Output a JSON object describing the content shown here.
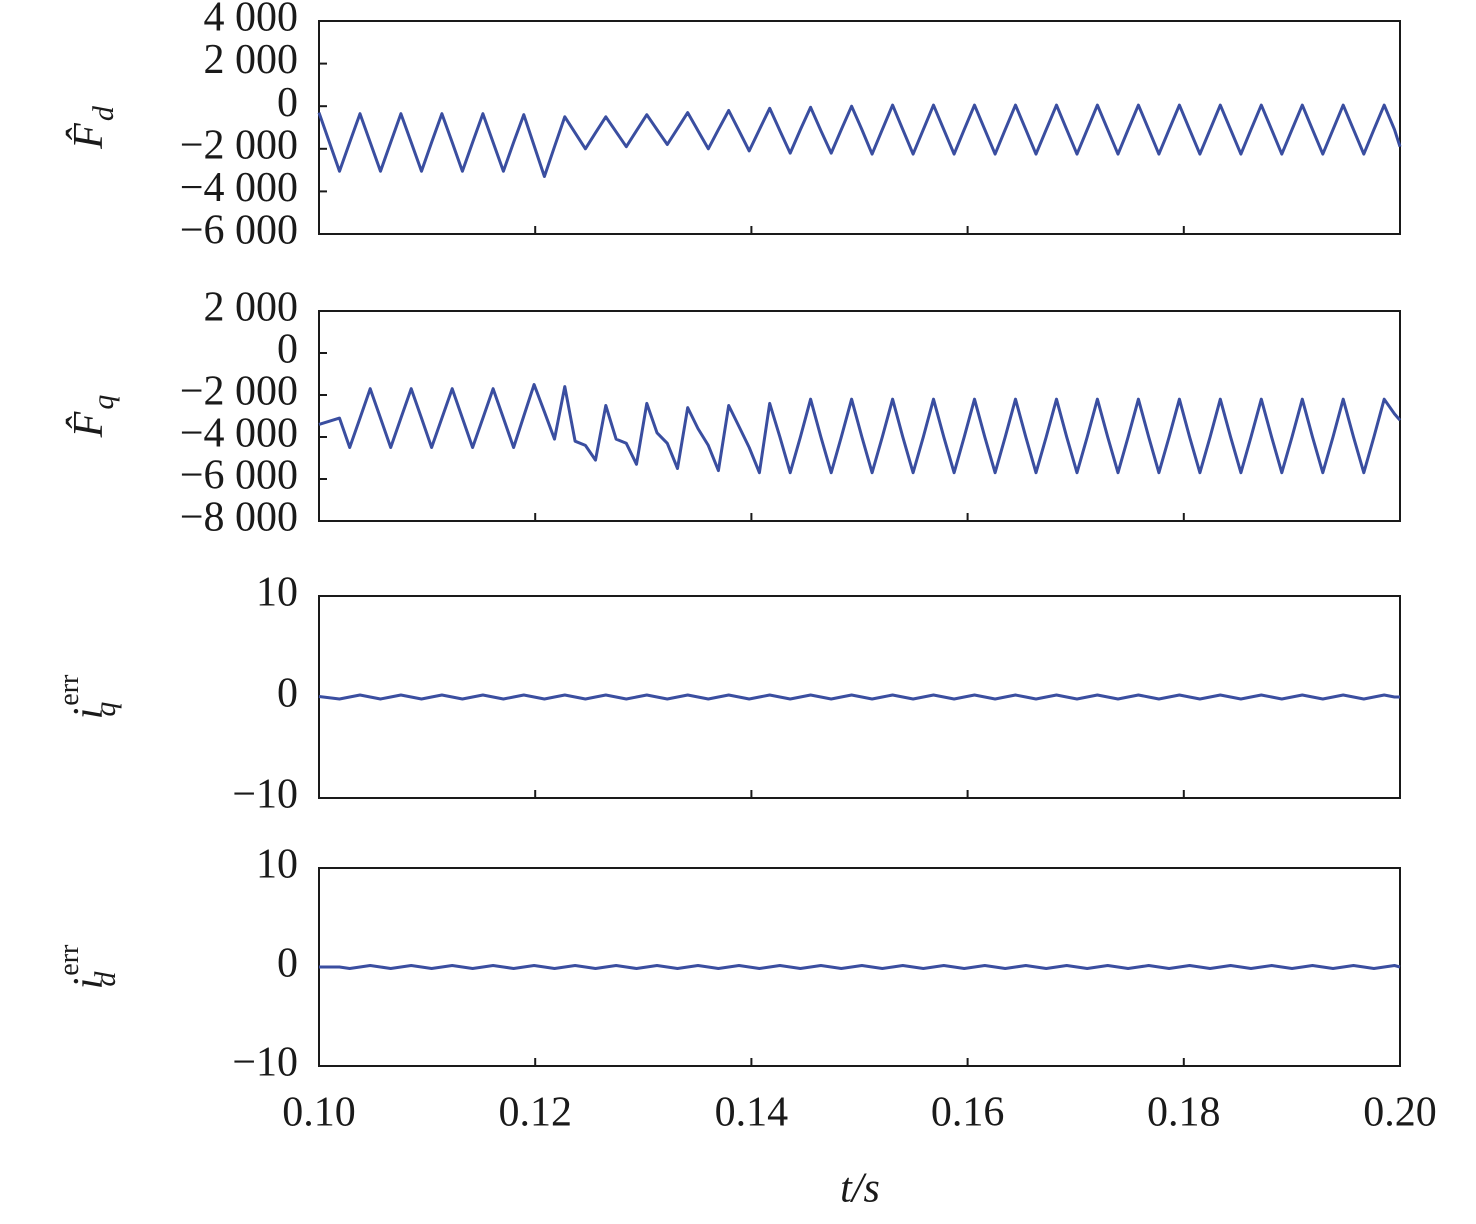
{
  "chart_data": [
    {
      "type": "line",
      "ylabel": "F̂",
      "ylabel_sub": "d",
      "color": "#3a4ea0",
      "xlim": [
        0.1,
        0.2
      ],
      "ylim": [
        -6000,
        4000
      ],
      "yticks": [
        {
          "value": 4000,
          "label": "4 000"
        },
        {
          "value": 2000,
          "label": "2 000"
        },
        0,
        {
          "value": -2000,
          "label": "−2 000"
        },
        {
          "value": -4000,
          "label": "−4 000"
        },
        {
          "value": -6000,
          "label": "−6 000"
        }
      ],
      "x": [
        0.1,
        0.1019,
        0.10284,
        0.10379,
        0.10474,
        0.10569,
        0.10663,
        0.10758,
        0.10853,
        0.10948,
        0.11042,
        0.11137,
        0.11232,
        0.11327,
        0.11421,
        0.11516,
        0.11611,
        0.11706,
        0.118,
        0.11895,
        0.1199,
        0.12085,
        0.12179,
        0.12274,
        0.12369,
        0.12464,
        0.12558,
        0.12653,
        0.12748,
        0.12843,
        0.12937,
        0.13032,
        0.13127,
        0.13222,
        0.13316,
        0.13411,
        0.13506,
        0.13601,
        0.13695,
        0.1379,
        0.13885,
        0.1398,
        0.14074,
        0.14169,
        0.14264,
        0.14359,
        0.14453,
        0.14548,
        0.14643,
        0.14738,
        0.14832,
        0.14927,
        0.15022,
        0.15117,
        0.15211,
        0.15306,
        0.15401,
        0.15496,
        0.1559,
        0.15685,
        0.1578,
        0.15875,
        0.15969,
        0.16064,
        0.16159,
        0.16254,
        0.16348,
        0.16443,
        0.16538,
        0.16633,
        0.16727,
        0.16822,
        0.16917,
        0.17012,
        0.17106,
        0.17201,
        0.17296,
        0.17391,
        0.17485,
        0.1758,
        0.17675,
        0.1777,
        0.17864,
        0.17959,
        0.18054,
        0.18149,
        0.18243,
        0.18338,
        0.18433,
        0.18528,
        0.18622,
        0.18717,
        0.18812,
        0.18907,
        0.19001,
        0.19096,
        0.19191,
        0.19286,
        0.1938,
        0.19475,
        0.1957,
        0.19665,
        0.19759,
        0.19854,
        0.19949,
        0.2
      ],
      "values": [
        -300,
        -3050,
        -1700,
        -350,
        -1700,
        -3050,
        -1700,
        -350,
        -1700,
        -3050,
        -1700,
        -350,
        -1700,
        -3050,
        -1700,
        -350,
        -1700,
        -3050,
        -1700,
        -400,
        -1850,
        -3300,
        -1900,
        -500,
        -1250,
        -2000,
        -1250,
        -500,
        -1200,
        -1900,
        -1150,
        -400,
        -1100,
        -1800,
        -1050,
        -300,
        -1150,
        -2000,
        -1100,
        -200,
        -1150,
        -2100,
        -1100,
        -100,
        -1150,
        -2200,
        -1100,
        -50,
        -1150,
        -2200,
        -1100,
        0,
        -1100,
        -2250,
        -1100,
        50,
        -1100,
        -2250,
        -1100,
        50,
        -1100,
        -2250,
        -1100,
        50,
        -1100,
        -2250,
        -1100,
        50,
        -1100,
        -2250,
        -1100,
        50,
        -1100,
        -2250,
        -1100,
        50,
        -1100,
        -2250,
        -1100,
        50,
        -1100,
        -2250,
        -1100,
        50,
        -1100,
        -2250,
        -1100,
        50,
        -1100,
        -2250,
        -1100,
        50,
        -1100,
        -2250,
        -1100,
        50,
        -1100,
        -2250,
        -1100,
        50,
        -1100,
        -2250,
        -1100,
        50,
        -1100,
        -1900
      ]
    },
    {
      "type": "line",
      "ylabel": "F̂",
      "ylabel_sub": "q",
      "color": "#3a4ea0",
      "xlim": [
        0.1,
        0.2
      ],
      "ylim": [
        -8000,
        2000
      ],
      "yticks": [
        {
          "value": 2000,
          "label": "2 000"
        },
        0,
        {
          "value": -2000,
          "label": "−2 000"
        },
        {
          "value": -4000,
          "label": "−4 000"
        },
        {
          "value": -6000,
          "label": "−6 000"
        },
        {
          "value": -8000,
          "label": "−8 000"
        }
      ],
      "x": [
        0.1,
        0.1019,
        0.10284,
        0.10379,
        0.10474,
        0.10569,
        0.10663,
        0.10758,
        0.10853,
        0.10948,
        0.11042,
        0.11137,
        0.11232,
        0.11327,
        0.11421,
        0.11516,
        0.11611,
        0.11706,
        0.118,
        0.11895,
        0.1199,
        0.12085,
        0.12179,
        0.12274,
        0.12369,
        0.12464,
        0.12558,
        0.12653,
        0.12748,
        0.12843,
        0.12937,
        0.13032,
        0.13127,
        0.13222,
        0.13316,
        0.13411,
        0.13506,
        0.13601,
        0.13695,
        0.1379,
        0.13885,
        0.1398,
        0.14074,
        0.14169,
        0.14264,
        0.14359,
        0.14453,
        0.14548,
        0.14643,
        0.14738,
        0.14832,
        0.14927,
        0.15022,
        0.15117,
        0.15211,
        0.15306,
        0.15401,
        0.15496,
        0.1559,
        0.15685,
        0.1578,
        0.15875,
        0.15969,
        0.16064,
        0.16159,
        0.16254,
        0.16348,
        0.16443,
        0.16538,
        0.16633,
        0.16727,
        0.16822,
        0.16917,
        0.17012,
        0.17106,
        0.17201,
        0.17296,
        0.17391,
        0.17485,
        0.1758,
        0.17675,
        0.1777,
        0.17864,
        0.17959,
        0.18054,
        0.18149,
        0.18243,
        0.18338,
        0.18433,
        0.18528,
        0.18622,
        0.18717,
        0.18812,
        0.18907,
        0.19001,
        0.19096,
        0.19191,
        0.19286,
        0.1938,
        0.19475,
        0.1957,
        0.19665,
        0.19759,
        0.19854,
        0.19949,
        0.2
      ],
      "values": [
        -3400,
        -3100,
        -4500,
        -3100,
        -1700,
        -3100,
        -4500,
        -3100,
        -1700,
        -3100,
        -4500,
        -3100,
        -1700,
        -3100,
        -4500,
        -3100,
        -1700,
        -3100,
        -4500,
        -3000,
        -1500,
        -2800,
        -4100,
        -1600,
        -4200,
        -4400,
        -5100,
        -2500,
        -4100,
        -4300,
        -5300,
        -2400,
        -3800,
        -4300,
        -5500,
        -2600,
        -3600,
        -4400,
        -5600,
        -2500,
        -3500,
        -4500,
        -5700,
        -2400,
        -4000,
        -5700,
        -4000,
        -2200,
        -4000,
        -5700,
        -4000,
        -2200,
        -4000,
        -5700,
        -4000,
        -2200,
        -4000,
        -5700,
        -4000,
        -2200,
        -4000,
        -5700,
        -4000,
        -2200,
        -4000,
        -5700,
        -4000,
        -2200,
        -4000,
        -5700,
        -4000,
        -2200,
        -4000,
        -5700,
        -4000,
        -2200,
        -4000,
        -5700,
        -4000,
        -2200,
        -4000,
        -5700,
        -4000,
        -2200,
        -4000,
        -5700,
        -4000,
        -2200,
        -4000,
        -5700,
        -4000,
        -2200,
        -4000,
        -5700,
        -4000,
        -2200,
        -4000,
        -5700,
        -4000,
        -2200,
        -4000,
        -5700,
        -4000,
        -2200,
        -2900,
        -3200
      ]
    },
    {
      "type": "line",
      "ylabel": "i",
      "ylabel_sub": "q",
      "ylabel_sup": "err",
      "color": "#3a4ea0",
      "xlim": [
        0.1,
        0.2
      ],
      "ylim": [
        -10,
        10
      ],
      "yticks": [
        10,
        0,
        {
          "value": -10,
          "label": "−10"
        }
      ],
      "x": [
        0.1,
        0.1019,
        0.10284,
        0.10379,
        0.10474,
        0.10569,
        0.10663,
        0.10758,
        0.10853,
        0.10948,
        0.11042,
        0.11137,
        0.11232,
        0.11327,
        0.11421,
        0.11516,
        0.11611,
        0.11706,
        0.118,
        0.11895,
        0.1199,
        0.12085,
        0.12179,
        0.12274,
        0.12369,
        0.12464,
        0.12558,
        0.12653,
        0.12748,
        0.12843,
        0.12937,
        0.13032,
        0.13127,
        0.13222,
        0.13316,
        0.13411,
        0.13506,
        0.13601,
        0.13695,
        0.1379,
        0.13885,
        0.1398,
        0.14074,
        0.14169,
        0.14264,
        0.14359,
        0.14453,
        0.14548,
        0.14643,
        0.14738,
        0.14832,
        0.14927,
        0.15022,
        0.15117,
        0.15211,
        0.15306,
        0.15401,
        0.15496,
        0.1559,
        0.15685,
        0.1578,
        0.15875,
        0.15969,
        0.16064,
        0.16159,
        0.16254,
        0.16348,
        0.16443,
        0.16538,
        0.16633,
        0.16727,
        0.16822,
        0.16917,
        0.17012,
        0.17106,
        0.17201,
        0.17296,
        0.17391,
        0.17485,
        0.1758,
        0.17675,
        0.1777,
        0.17864,
        0.17959,
        0.18054,
        0.18149,
        0.18243,
        0.18338,
        0.18433,
        0.18528,
        0.18622,
        0.18717,
        0.18812,
        0.18907,
        0.19001,
        0.19096,
        0.19191,
        0.19286,
        0.1938,
        0.19475,
        0.1957,
        0.19665,
        0.19759,
        0.19854,
        0.19949,
        0.2
      ],
      "values": [
        0.05,
        -0.2,
        0,
        0.2,
        0,
        -0.2,
        0,
        0.2,
        0,
        -0.2,
        0,
        0.2,
        0,
        -0.2,
        0,
        0.2,
        0,
        -0.2,
        0,
        0.2,
        0,
        -0.2,
        0,
        0.2,
        0,
        -0.2,
        0,
        0.2,
        0,
        -0.2,
        0,
        0.2,
        0,
        -0.2,
        0,
        0.2,
        0,
        -0.2,
        0,
        0.2,
        0,
        -0.2,
        0,
        0.2,
        0,
        -0.2,
        0,
        0.2,
        0,
        -0.2,
        0,
        0.2,
        0,
        -0.2,
        0,
        0.2,
        0,
        -0.2,
        0,
        0.2,
        0,
        -0.2,
        0,
        0.2,
        0,
        -0.2,
        0,
        0.2,
        0,
        -0.2,
        0,
        0.2,
        0,
        -0.2,
        0,
        0.2,
        0,
        -0.2,
        0,
        0.2,
        0,
        -0.2,
        0,
        0.2,
        0,
        -0.2,
        0,
        0.2,
        0,
        -0.2,
        0,
        0.2,
        0,
        -0.2,
        0,
        0.2,
        0,
        -0.2,
        0,
        0.2,
        0,
        -0.2,
        0,
        0.2,
        0,
        0
      ]
    },
    {
      "type": "line",
      "ylabel": "i",
      "ylabel_sub": "d",
      "ylabel_sup": "err",
      "color": "#3a4ea0",
      "xlim": [
        0.1,
        0.2
      ],
      "ylim": [
        -10,
        10
      ],
      "yticks": [
        10,
        0,
        {
          "value": -10,
          "label": "−10"
        }
      ],
      "xticks": [
        {
          "value": 0.1,
          "label": "0.10"
        },
        0.12,
        0.14,
        0.16,
        0.18,
        {
          "value": 0.2,
          "label": "0.20"
        }
      ],
      "xlabel": "t/s",
      "x": [
        0.1,
        0.1019,
        0.10284,
        0.10379,
        0.10474,
        0.10569,
        0.10663,
        0.10758,
        0.10853,
        0.10948,
        0.11042,
        0.11137,
        0.11232,
        0.11327,
        0.11421,
        0.11516,
        0.11611,
        0.11706,
        0.118,
        0.11895,
        0.1199,
        0.12085,
        0.12179,
        0.12274,
        0.12369,
        0.12464,
        0.12558,
        0.12653,
        0.12748,
        0.12843,
        0.12937,
        0.13032,
        0.13127,
        0.13222,
        0.13316,
        0.13411,
        0.13506,
        0.13601,
        0.13695,
        0.1379,
        0.13885,
        0.1398,
        0.14074,
        0.14169,
        0.14264,
        0.14359,
        0.14453,
        0.14548,
        0.14643,
        0.14738,
        0.14832,
        0.14927,
        0.15022,
        0.15117,
        0.15211,
        0.15306,
        0.15401,
        0.15496,
        0.1559,
        0.15685,
        0.1578,
        0.15875,
        0.15969,
        0.16064,
        0.16159,
        0.16254,
        0.16348,
        0.16443,
        0.16538,
        0.16633,
        0.16727,
        0.16822,
        0.16917,
        0.17012,
        0.17106,
        0.17201,
        0.17296,
        0.17391,
        0.17485,
        0.1758,
        0.17675,
        0.1777,
        0.17864,
        0.17959,
        0.18054,
        0.18149,
        0.18243,
        0.18338,
        0.18433,
        0.18528,
        0.18622,
        0.18717,
        0.18812,
        0.18907,
        0.19001,
        0.19096,
        0.19191,
        0.19286,
        0.1938,
        0.19475,
        0.1957,
        0.19665,
        0.19759,
        0.19854,
        0.19949,
        0.2
      ],
      "values": [
        0,
        0,
        -0.15,
        0,
        0.15,
        0,
        -0.15,
        0,
        0.15,
        0,
        -0.15,
        0,
        0.15,
        0,
        -0.15,
        0,
        0.15,
        0,
        -0.15,
        0,
        0.15,
        0,
        -0.15,
        0,
        0.15,
        0,
        -0.15,
        0,
        0.15,
        0,
        -0.15,
        0,
        0.15,
        0,
        -0.15,
        0,
        0.15,
        0,
        -0.15,
        0,
        0.15,
        0,
        -0.15,
        0,
        0.15,
        0,
        -0.15,
        0,
        0.15,
        0,
        -0.15,
        0,
        0.15,
        0,
        -0.15,
        0,
        0.15,
        0,
        -0.15,
        0,
        0.15,
        0,
        -0.15,
        0,
        0.15,
        0,
        -0.15,
        0,
        0.15,
        0,
        -0.15,
        0,
        0.15,
        0,
        -0.15,
        0,
        0.15,
        0,
        -0.15,
        0,
        0.15,
        0,
        -0.15,
        0,
        0.15,
        0,
        -0.15,
        0,
        0.15,
        0,
        -0.15,
        0,
        0.15,
        0,
        -0.15,
        0,
        0.15,
        0,
        -0.15,
        0,
        0.15,
        0,
        -0.15,
        0,
        0.15,
        0
      ]
    }
  ]
}
